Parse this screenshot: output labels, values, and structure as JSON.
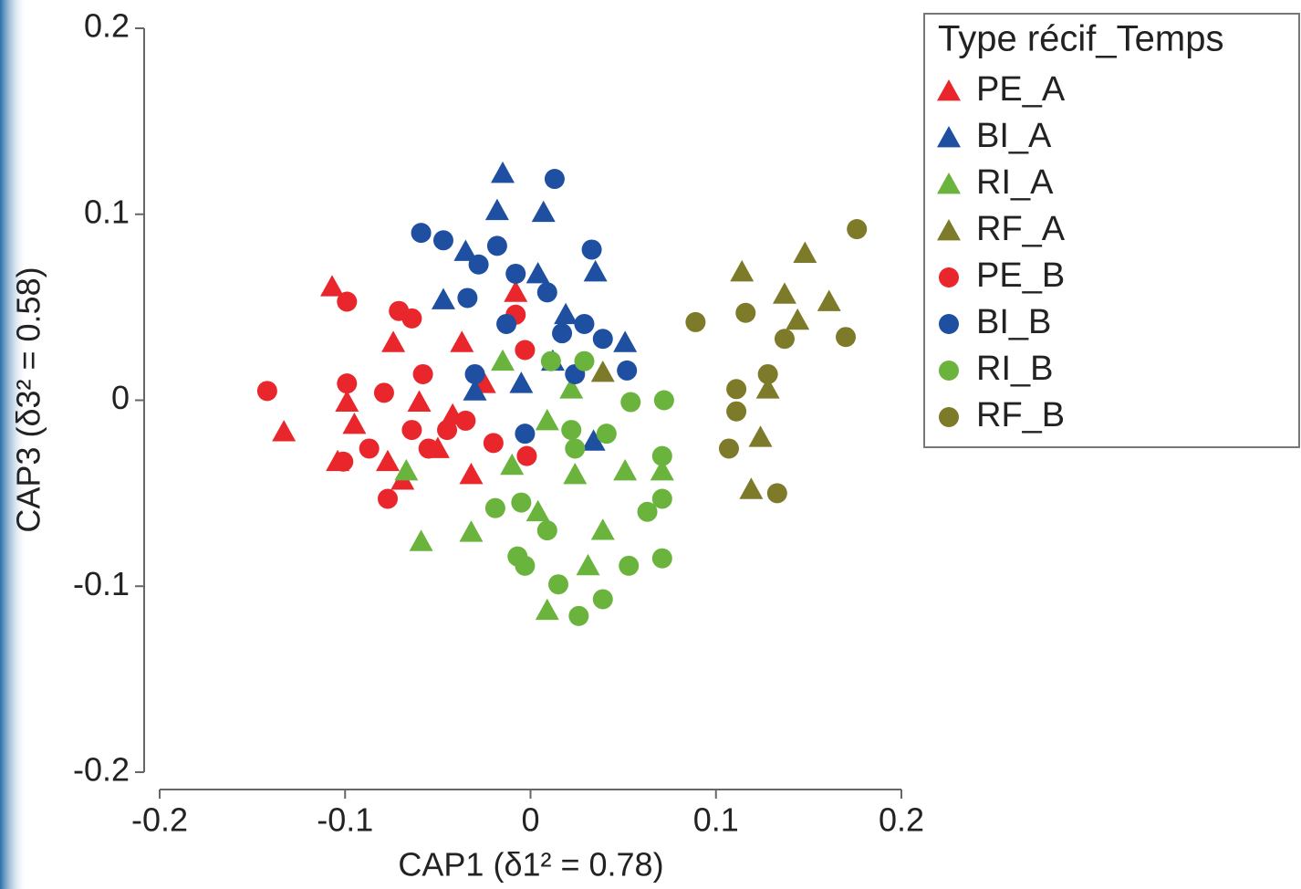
{
  "chart_data": {
    "type": "scatter",
    "xlabel": "CAP1 (δ1² = 0.78)",
    "ylabel": "CAP3 (δ3² = 0.58)",
    "legend_title": "Type récif_Temps",
    "legend_position": "upper right",
    "xlim": [
      -0.2,
      0.2
    ],
    "ylim": [
      -0.2,
      0.2
    ],
    "xticks": [
      -0.2,
      -0.1,
      0,
      0.1,
      0.2
    ],
    "yticks": [
      -0.2,
      -0.1,
      0,
      0.1,
      0.2
    ],
    "series": [
      {
        "name": "PE_A",
        "color": "#e8262b",
        "marker": "triangle",
        "x": [
          -0.107,
          -0.133,
          -0.074,
          -0.095,
          -0.104,
          -0.077,
          -0.05,
          -0.037,
          -0.032,
          -0.06,
          -0.042,
          -0.069,
          -0.099,
          -0.025,
          -0.008
        ],
        "y": [
          0.061,
          -0.017,
          0.031,
          -0.013,
          -0.033,
          -0.033,
          -0.026,
          0.031,
          -0.04,
          -0.001,
          -0.008,
          -0.043,
          -0.001,
          0.009,
          0.058
        ]
      },
      {
        "name": "BI_A",
        "color": "#1e4fa0",
        "marker": "triangle",
        "x": [
          -0.015,
          -0.018,
          0.007,
          -0.047,
          -0.03,
          0.004,
          0.035,
          0.051,
          0.034,
          -0.005,
          -0.035,
          0.019,
          0.012
        ],
        "y": [
          0.122,
          0.102,
          0.101,
          0.054,
          0.005,
          0.068,
          0.069,
          0.031,
          -0.022,
          0.009,
          0.08,
          0.046,
          0.021
        ]
      },
      {
        "name": "RI_A",
        "color": "#6ab43e",
        "marker": "triangle",
        "x": [
          -0.059,
          -0.032,
          0.009,
          -0.015,
          -0.067,
          -0.01,
          0.051,
          0.071,
          0.024,
          0.031,
          0.039,
          0.004,
          0.022,
          0.009
        ],
        "y": [
          -0.076,
          -0.071,
          -0.113,
          0.021,
          -0.038,
          -0.035,
          -0.038,
          -0.038,
          -0.04,
          -0.089,
          -0.07,
          -0.06,
          0.006,
          -0.011
        ]
      },
      {
        "name": "RF_A",
        "color": "#7d7b2a",
        "marker": "triangle",
        "x": [
          0.114,
          0.148,
          0.137,
          0.161,
          0.144,
          0.128,
          0.124,
          0.119,
          0.039
        ],
        "y": [
          0.069,
          0.079,
          0.057,
          0.053,
          0.043,
          0.006,
          -0.02,
          -0.048,
          0.015
        ]
      },
      {
        "name": "PE_B",
        "color": "#e8262b",
        "marker": "circle",
        "x": [
          -0.142,
          -0.099,
          -0.071,
          -0.064,
          -0.099,
          -0.087,
          -0.077,
          -0.079,
          -0.058,
          -0.045,
          -0.02,
          -0.003,
          -0.002,
          -0.055,
          -0.101,
          -0.064,
          -0.035,
          -0.008
        ],
        "y": [
          0.005,
          0.053,
          0.048,
          0.044,
          0.009,
          -0.026,
          -0.053,
          0.004,
          0.014,
          -0.016,
          -0.023,
          0.027,
          -0.03,
          -0.026,
          -0.033,
          -0.016,
          -0.011,
          0.046
        ]
      },
      {
        "name": "BI_B",
        "color": "#1e4fa0",
        "marker": "circle",
        "x": [
          0.013,
          -0.059,
          -0.047,
          -0.018,
          -0.028,
          0.033,
          -0.034,
          -0.008,
          0.009,
          0.029,
          0.039,
          0.052,
          -0.003,
          0.017,
          -0.03,
          -0.013,
          0.024
        ],
        "y": [
          0.119,
          0.09,
          0.086,
          0.083,
          0.073,
          0.081,
          0.055,
          0.068,
          0.058,
          0.041,
          0.033,
          0.016,
          -0.018,
          0.036,
          0.014,
          0.041,
          0.014
        ]
      },
      {
        "name": "RI_B",
        "color": "#6ab43e",
        "marker": "circle",
        "x": [
          0.026,
          0.039,
          0.015,
          -0.003,
          -0.007,
          0.071,
          0.053,
          -0.019,
          -0.005,
          0.072,
          0.071,
          0.063,
          0.041,
          0.029,
          0.054,
          0.024,
          0.009,
          0.022,
          0.011,
          0.071
        ],
        "y": [
          -0.116,
          -0.107,
          -0.099,
          -0.089,
          -0.084,
          -0.085,
          -0.089,
          -0.058,
          -0.055,
          0.0,
          -0.03,
          -0.06,
          -0.018,
          0.021,
          -0.001,
          -0.026,
          -0.07,
          -0.016,
          0.021,
          -0.053
        ]
      },
      {
        "name": "RF_B",
        "color": "#7d7b2a",
        "marker": "circle",
        "x": [
          0.176,
          0.089,
          0.116,
          0.17,
          0.137,
          0.128,
          0.111,
          0.111,
          0.107,
          0.133
        ],
        "y": [
          0.092,
          0.042,
          0.047,
          0.034,
          0.033,
          0.014,
          0.006,
          -0.006,
          -0.026,
          -0.05
        ]
      }
    ]
  }
}
